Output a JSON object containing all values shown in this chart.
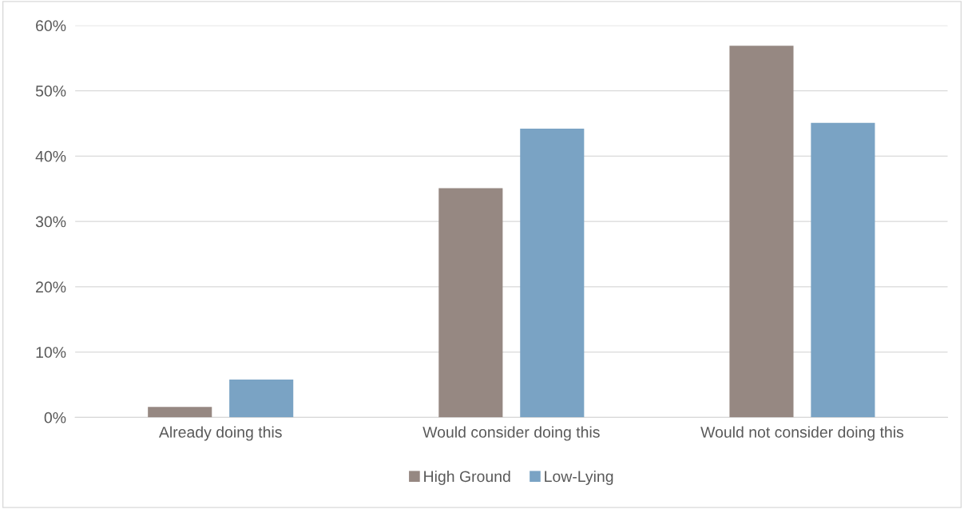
{
  "chart_data": {
    "type": "bar",
    "categories": [
      "Already doing this",
      "Would consider doing this",
      "Would not consider doing this"
    ],
    "series": [
      {
        "name": "High Ground",
        "color": "#968882",
        "values": [
          1.6,
          35.1,
          56.9
        ]
      },
      {
        "name": "Low-Lying",
        "color": "#7aa3c4",
        "values": [
          5.8,
          44.2,
          45.1
        ]
      }
    ],
    "ylim": [
      0,
      60
    ],
    "yticks": [
      {
        "value": 0,
        "label": "0%"
      },
      {
        "value": 10,
        "label": "10%"
      },
      {
        "value": 20,
        "label": "20%"
      },
      {
        "value": 30,
        "label": "30%"
      },
      {
        "value": 40,
        "label": "40%"
      },
      {
        "value": 50,
        "label": "50%"
      },
      {
        "value": 60,
        "label": "60%"
      }
    ],
    "grid": "y",
    "legend": "bottom"
  }
}
